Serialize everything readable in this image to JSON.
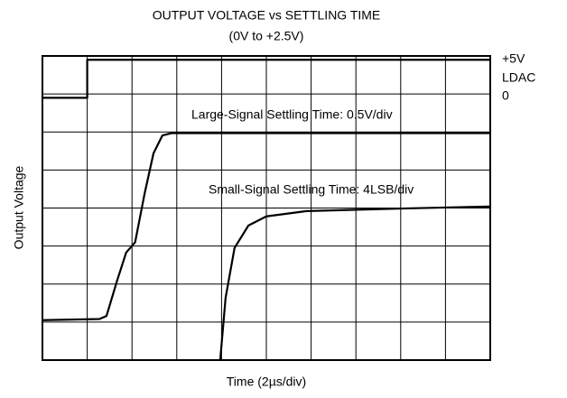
{
  "chart_data": {
    "type": "line",
    "title": "OUTPUT VOLTAGE vs SETTLING TIME",
    "subtitle": "(0V to +2.5V)",
    "x_label": "Time (2µs/div)",
    "y_label": "Output Voltage",
    "annotations": [
      "+5V",
      "LDAC",
      "0",
      "Large-Signal Settling Time: 0.5V/div",
      "Small-Signal Settling Time: 4LSB/div"
    ],
    "xlim": [
      0,
      10
    ],
    "ylim": [
      0,
      8
    ],
    "xticks": [
      0,
      1,
      2,
      3,
      4,
      5,
      6,
      7,
      8,
      9,
      10
    ],
    "yticks": [
      0,
      1,
      2,
      3,
      4,
      5,
      6,
      7,
      8
    ],
    "grid": true,
    "series": [
      {
        "color": "#000000",
        "x": [
          0,
          1,
          1,
          10
        ],
        "values": [
          6.9,
          6.9,
          7.9,
          7.9
        ]
      },
      {
        "color": "#000000",
        "x": [
          0,
          1.27,
          1.43,
          1.67,
          1.87,
          2.07,
          2.28,
          2.48,
          2.68,
          2.88,
          10
        ],
        "values": [
          1.05,
          1.08,
          1.16,
          2.1,
          2.83,
          3.1,
          4.37,
          5.44,
          5.91,
          5.97,
          5.97
        ]
      },
      {
        "color": "#000000",
        "x": [
          3.97,
          4.09,
          4.29,
          4.6,
          5.0,
          5.9,
          8.12,
          10
        ],
        "values": [
          0,
          1.64,
          2.95,
          3.54,
          3.78,
          3.92,
          3.99,
          4.04
        ]
      }
    ]
  }
}
